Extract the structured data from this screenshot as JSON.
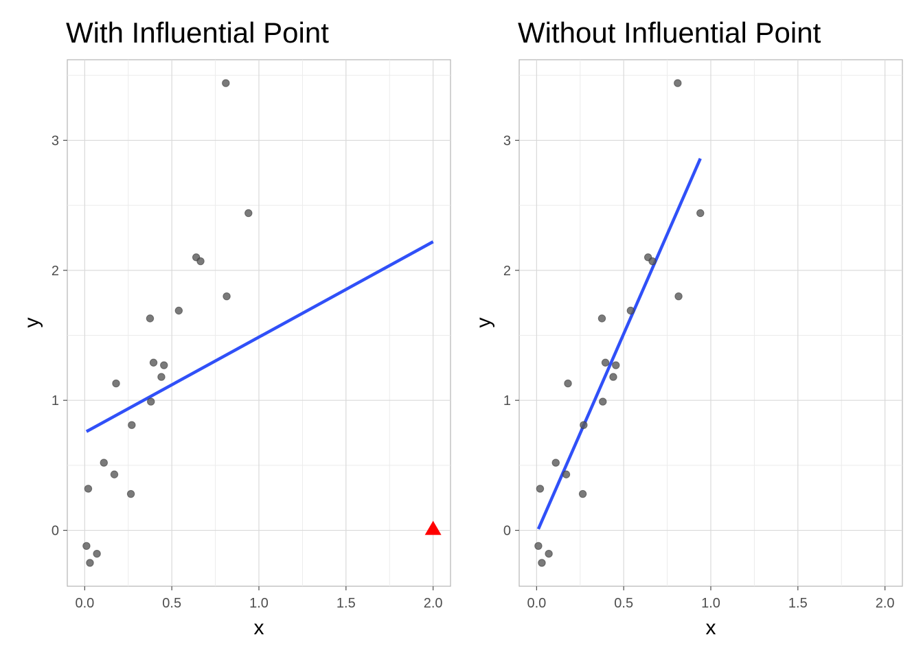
{
  "chart_data": [
    {
      "type": "scatter",
      "title": "With Influential Point",
      "xlabel": "x",
      "ylabel": "y",
      "xlim": [
        -0.1,
        2.1
      ],
      "ylim": [
        -0.43,
        3.62
      ],
      "x_ticks": [
        0.0,
        0.5,
        1.0,
        1.5,
        2.0
      ],
      "x_tick_labels": [
        "0.0",
        "0.5",
        "1.0",
        "1.5",
        "2.0"
      ],
      "y_ticks": [
        0,
        1,
        2,
        3
      ],
      "y_tick_labels": [
        "0",
        "1",
        "2",
        "3"
      ],
      "grid": true,
      "points": [
        {
          "x": 0.01,
          "y": -0.12
        },
        {
          "x": 0.02,
          "y": 0.32
        },
        {
          "x": 0.03,
          "y": -0.25
        },
        {
          "x": 0.07,
          "y": -0.18
        },
        {
          "x": 0.11,
          "y": 0.52
        },
        {
          "x": 0.17,
          "y": 0.43
        },
        {
          "x": 0.18,
          "y": 1.13
        },
        {
          "x": 0.265,
          "y": 0.28
        },
        {
          "x": 0.27,
          "y": 0.81
        },
        {
          "x": 0.375,
          "y": 1.63
        },
        {
          "x": 0.38,
          "y": 0.99
        },
        {
          "x": 0.395,
          "y": 1.29
        },
        {
          "x": 0.44,
          "y": 1.18
        },
        {
          "x": 0.455,
          "y": 1.27
        },
        {
          "x": 0.54,
          "y": 1.69
        },
        {
          "x": 0.64,
          "y": 2.1
        },
        {
          "x": 0.665,
          "y": 2.07
        },
        {
          "x": 0.81,
          "y": 3.44
        },
        {
          "x": 0.815,
          "y": 1.8
        },
        {
          "x": 0.94,
          "y": 2.44
        }
      ],
      "influential_point": {
        "x": 2.0,
        "y": 0.01
      },
      "fit_line": {
        "x": [
          0.01,
          2.0
        ],
        "y": [
          0.76,
          2.22
        ]
      },
      "colors": {
        "points": "#595959",
        "line": "#3050f8",
        "influential": "#ff0000"
      }
    },
    {
      "type": "scatter",
      "title": "Without Influential Point",
      "xlabel": "x",
      "ylabel": "y",
      "xlim": [
        -0.1,
        2.1
      ],
      "ylim": [
        -0.43,
        3.62
      ],
      "x_ticks": [
        0.0,
        0.5,
        1.0,
        1.5,
        2.0
      ],
      "x_tick_labels": [
        "0.0",
        "0.5",
        "1.0",
        "1.5",
        "2.0"
      ],
      "y_ticks": [
        0,
        1,
        2,
        3
      ],
      "y_tick_labels": [
        "0",
        "1",
        "2",
        "3"
      ],
      "grid": true,
      "points": [
        {
          "x": 0.01,
          "y": -0.12
        },
        {
          "x": 0.02,
          "y": 0.32
        },
        {
          "x": 0.03,
          "y": -0.25
        },
        {
          "x": 0.07,
          "y": -0.18
        },
        {
          "x": 0.11,
          "y": 0.52
        },
        {
          "x": 0.17,
          "y": 0.43
        },
        {
          "x": 0.18,
          "y": 1.13
        },
        {
          "x": 0.265,
          "y": 0.28
        },
        {
          "x": 0.27,
          "y": 0.81
        },
        {
          "x": 0.375,
          "y": 1.63
        },
        {
          "x": 0.38,
          "y": 0.99
        },
        {
          "x": 0.395,
          "y": 1.29
        },
        {
          "x": 0.44,
          "y": 1.18
        },
        {
          "x": 0.455,
          "y": 1.27
        },
        {
          "x": 0.54,
          "y": 1.69
        },
        {
          "x": 0.64,
          "y": 2.1
        },
        {
          "x": 0.665,
          "y": 2.07
        },
        {
          "x": 0.81,
          "y": 3.44
        },
        {
          "x": 0.815,
          "y": 1.8
        },
        {
          "x": 0.94,
          "y": 2.44
        }
      ],
      "fit_line": {
        "x": [
          0.01,
          0.94
        ],
        "y": [
          0.01,
          2.86
        ]
      },
      "colors": {
        "points": "#595959",
        "line": "#3050f8"
      }
    }
  ]
}
